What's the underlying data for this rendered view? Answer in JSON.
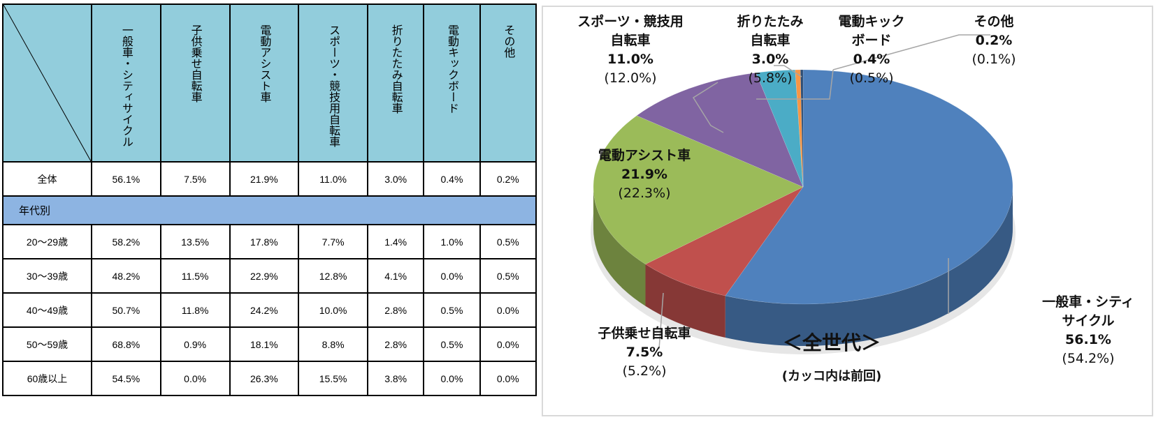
{
  "table": {
    "columns": [
      "一般車・シティサイクル",
      "子供乗せ自転車",
      "電動アシスト車",
      "スポーツ・競技用自転車",
      "折りたたみ自転車",
      "電動キックボード",
      "その他"
    ],
    "total": {
      "label": "全体",
      "values": [
        "56.1%",
        "7.5%",
        "21.9%",
        "11.0%",
        "3.0%",
        "0.4%",
        "0.2%"
      ]
    },
    "section_label": "年代別",
    "rows": [
      {
        "label": "20～29歳",
        "values": [
          "58.2%",
          "13.5%",
          "17.8%",
          "7.7%",
          "1.4%",
          "1.0%",
          "0.5%"
        ]
      },
      {
        "label": "30～39歳",
        "values": [
          "48.2%",
          "11.5%",
          "22.9%",
          "12.8%",
          "4.1%",
          "0.0%",
          "0.5%"
        ]
      },
      {
        "label": "40～49歳",
        "values": [
          "50.7%",
          "11.8%",
          "24.2%",
          "10.0%",
          "2.8%",
          "0.5%",
          "0.0%"
        ]
      },
      {
        "label": "50～59歳",
        "values": [
          "68.8%",
          "0.9%",
          "18.1%",
          "8.8%",
          "2.8%",
          "0.5%",
          "0.0%"
        ]
      },
      {
        "label": "60歳以上",
        "values": [
          "54.5%",
          "0.0%",
          "26.3%",
          "15.5%",
          "3.8%",
          "0.0%",
          "0.0%"
        ]
      }
    ]
  },
  "chart_data": {
    "type": "pie",
    "title": "＜全世代＞",
    "subtitle": "(カッコ内は前回)",
    "slices": [
      {
        "name_lines": [
          "一般車・シティ",
          "サイクル"
        ],
        "value": 56.1,
        "label": "56.1%",
        "previous": "(54.2%)",
        "color": "#4f81bd"
      },
      {
        "name_lines": [
          "子供乗せ自転車"
        ],
        "value": 7.5,
        "label": "7.5%",
        "previous": "(5.2%)",
        "color": "#c0504d"
      },
      {
        "name_lines": [
          "電動アシスト車"
        ],
        "value": 21.9,
        "label": "21.9%",
        "previous": "(22.3%)",
        "color": "#9bbb59"
      },
      {
        "name_lines": [
          "スポーツ・競技用",
          "自転車"
        ],
        "value": 11.0,
        "label": "11.0%",
        "previous": "(12.0%)",
        "color": "#8064a2"
      },
      {
        "name_lines": [
          "折りたたみ",
          "自転車"
        ],
        "value": 3.0,
        "label": "3.0%",
        "previous": "(5.8%)",
        "color": "#4bacc6"
      },
      {
        "name_lines": [
          "電動キック",
          "ボード"
        ],
        "value": 0.4,
        "label": "0.4%",
        "previous": "(0.5%)",
        "color": "#f79646"
      },
      {
        "name_lines": [
          "その他"
        ],
        "value": 0.2,
        "label": "0.2%",
        "previous": "(0.1%)",
        "color": "#2c4d75"
      }
    ]
  }
}
